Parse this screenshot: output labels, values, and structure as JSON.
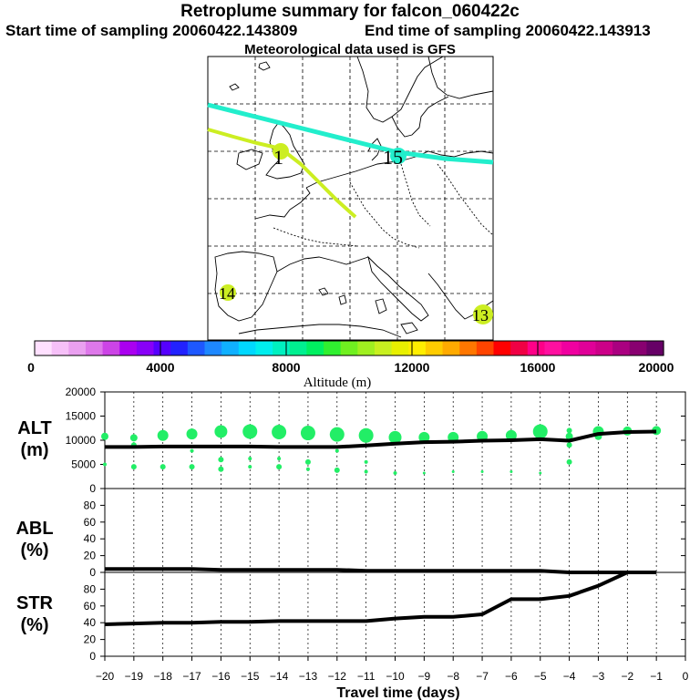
{
  "header": {
    "title": "Retroplume summary for falcon_060422c",
    "start": "Start time of sampling 20060422.143809",
    "end": "End time of sampling 20060422.143913",
    "met": "Meteorological data used is GFS"
  },
  "map": {
    "labels": [
      {
        "text": "1",
        "color": "#ccee22"
      },
      {
        "text": "15",
        "color": "#22eecc"
      },
      {
        "text": "14",
        "color": "#ccee22"
      },
      {
        "text": "13",
        "color": "#ccee22"
      }
    ],
    "tracks": [
      {
        "name": "track-15",
        "color": "#22eecc"
      },
      {
        "name": "track-1",
        "color": "#ccee22"
      }
    ]
  },
  "colorbar": {
    "label": "Altitude (m)",
    "ticks": [
      "0",
      "4000",
      "8000",
      "12000",
      "16000",
      "20000"
    ],
    "colors": [
      "#ffe0ff",
      "#f6c0f8",
      "#eaa0f0",
      "#de78ea",
      "#cc44e6",
      "#aa00f0",
      "#8800f8",
      "#5500ff",
      "#2222ff",
      "#1e58ff",
      "#1e88ff",
      "#10b0ff",
      "#00d8ff",
      "#00eeee",
      "#00f0c0",
      "#00f090",
      "#00f060",
      "#30f030",
      "#70f020",
      "#a0f020",
      "#c8f020",
      "#e8f000",
      "#ffee00",
      "#ffcc00",
      "#ffaa00",
      "#ff7700",
      "#ff4400",
      "#ff0000",
      "#f00044",
      "#ff0088",
      "#ff10a0",
      "#f000a0",
      "#e00098",
      "#cc0088",
      "#aa0080",
      "#880070",
      "#660066"
    ]
  },
  "xaxis": {
    "label": "Travel time (days)",
    "ticks": [
      "−20",
      "−19",
      "−18",
      "−17",
      "−16",
      "−15",
      "−14",
      "−13",
      "−12",
      "−11",
      "−10",
      "−9",
      "−8",
      "−7",
      "−6",
      "−5",
      "−4",
      "−3",
      "−2",
      "−1",
      "0"
    ]
  },
  "chart_data": [
    {
      "type": "line",
      "panel": "ALT",
      "ylabel": "ALT\n(m)",
      "ylim": [
        0,
        20000
      ],
      "yticks": [
        "0",
        "5000",
        "10000",
        "15000",
        "20000"
      ],
      "x": [
        -20,
        -19,
        -18,
        -17,
        -16,
        -15,
        -14,
        -13,
        -12,
        -11,
        -10,
        -9,
        -8,
        -7,
        -6,
        -5,
        -4,
        -3,
        -2,
        -1
      ],
      "values": [
        8600,
        8600,
        8700,
        8700,
        8700,
        8700,
        8600,
        8600,
        8600,
        8900,
        9300,
        9600,
        9700,
        9900,
        10000,
        10200,
        9900,
        11300,
        11700,
        11800
      ],
      "dots": [
        {
          "x": -20,
          "y": 10800,
          "s": 4
        },
        {
          "x": -20,
          "y": 5000,
          "s": 2
        },
        {
          "x": -19,
          "y": 10500,
          "s": 4
        },
        {
          "x": -19,
          "y": 9000,
          "s": 3
        },
        {
          "x": -19,
          "y": 4500,
          "s": 3
        },
        {
          "x": -18,
          "y": 11000,
          "s": 6
        },
        {
          "x": -18,
          "y": 4500,
          "s": 3
        },
        {
          "x": -17,
          "y": 11300,
          "s": 6
        },
        {
          "x": -17,
          "y": 7800,
          "s": 2
        },
        {
          "x": -17,
          "y": 4500,
          "s": 3
        },
        {
          "x": -16,
          "y": 11800,
          "s": 7
        },
        {
          "x": -16,
          "y": 6000,
          "s": 3
        },
        {
          "x": -16,
          "y": 4000,
          "s": 3
        },
        {
          "x": -15,
          "y": 11800,
          "s": 8
        },
        {
          "x": -15,
          "y": 6200,
          "s": 2
        },
        {
          "x": -15,
          "y": 4500,
          "s": 2
        },
        {
          "x": -14,
          "y": 11700,
          "s": 8
        },
        {
          "x": -14,
          "y": 6200,
          "s": 2
        },
        {
          "x": -14,
          "y": 4500,
          "s": 3
        },
        {
          "x": -13,
          "y": 11500,
          "s": 8
        },
        {
          "x": -13,
          "y": 5500,
          "s": 3
        },
        {
          "x": -13,
          "y": 4000,
          "s": 2
        },
        {
          "x": -12,
          "y": 11200,
          "s": 8
        },
        {
          "x": -12,
          "y": 7800,
          "s": 2
        },
        {
          "x": -12,
          "y": 3800,
          "s": 3
        },
        {
          "x": -11,
          "y": 11000,
          "s": 8
        },
        {
          "x": -11,
          "y": 5500,
          "s": 2
        },
        {
          "x": -11,
          "y": 3500,
          "s": 2
        },
        {
          "x": -10,
          "y": 10600,
          "s": 7
        },
        {
          "x": -10,
          "y": 3200,
          "s": 2
        },
        {
          "x": -9,
          "y": 10600,
          "s": 6
        },
        {
          "x": -9,
          "y": 3200,
          "s": 1.5
        },
        {
          "x": -8,
          "y": 10600,
          "s": 6
        },
        {
          "x": -8,
          "y": 3500,
          "s": 1.5
        },
        {
          "x": -7,
          "y": 10800,
          "s": 6
        },
        {
          "x": -7,
          "y": 3500,
          "s": 1.5
        },
        {
          "x": -6,
          "y": 11000,
          "s": 6
        },
        {
          "x": -6,
          "y": 3500,
          "s": 1.5
        },
        {
          "x": -5,
          "y": 11800,
          "s": 8
        },
        {
          "x": -5,
          "y": 3200,
          "s": 1.5
        },
        {
          "x": -4,
          "y": 12000,
          "s": 3
        },
        {
          "x": -4,
          "y": 10800,
          "s": 4
        },
        {
          "x": -4,
          "y": 9000,
          "s": 3
        },
        {
          "x": -4,
          "y": 5500,
          "s": 3
        },
        {
          "x": -3,
          "y": 11800,
          "s": 6
        },
        {
          "x": -3,
          "y": 10800,
          "s": 4
        },
        {
          "x": -2,
          "y": 11900,
          "s": 5
        },
        {
          "x": -1,
          "y": 12000,
          "s": 5
        }
      ]
    },
    {
      "type": "line",
      "panel": "ABL",
      "ylabel": "ABL\n(%)",
      "ylim": [
        0,
        100
      ],
      "yticks": [
        "0",
        "20",
        "40",
        "60",
        "80"
      ],
      "x": [
        -20,
        -19,
        -18,
        -17,
        -16,
        -15,
        -14,
        -13,
        -12,
        -11,
        -10,
        -9,
        -8,
        -7,
        -6,
        -5,
        -4,
        -3,
        -2,
        -1
      ],
      "values": [
        4,
        4,
        4,
        4,
        3,
        3,
        3,
        3,
        3,
        2,
        2,
        2,
        2,
        2,
        2,
        2,
        0,
        0,
        0,
        0
      ]
    },
    {
      "type": "line",
      "panel": "STR",
      "ylabel": "STR\n(%)",
      "ylim": [
        0,
        100
      ],
      "yticks": [
        "0",
        "20",
        "40",
        "60",
        "80"
      ],
      "x": [
        -20,
        -19,
        -18,
        -17,
        -16,
        -15,
        -14,
        -13,
        -12,
        -11,
        -10,
        -9,
        -8,
        -7,
        -6,
        -5,
        -4,
        -3,
        -2,
        -1
      ],
      "values": [
        38,
        39,
        40,
        40,
        41,
        41,
        42,
        42,
        42,
        42,
        45,
        47,
        47,
        50,
        68,
        68,
        72,
        84,
        100,
        100
      ]
    }
  ]
}
